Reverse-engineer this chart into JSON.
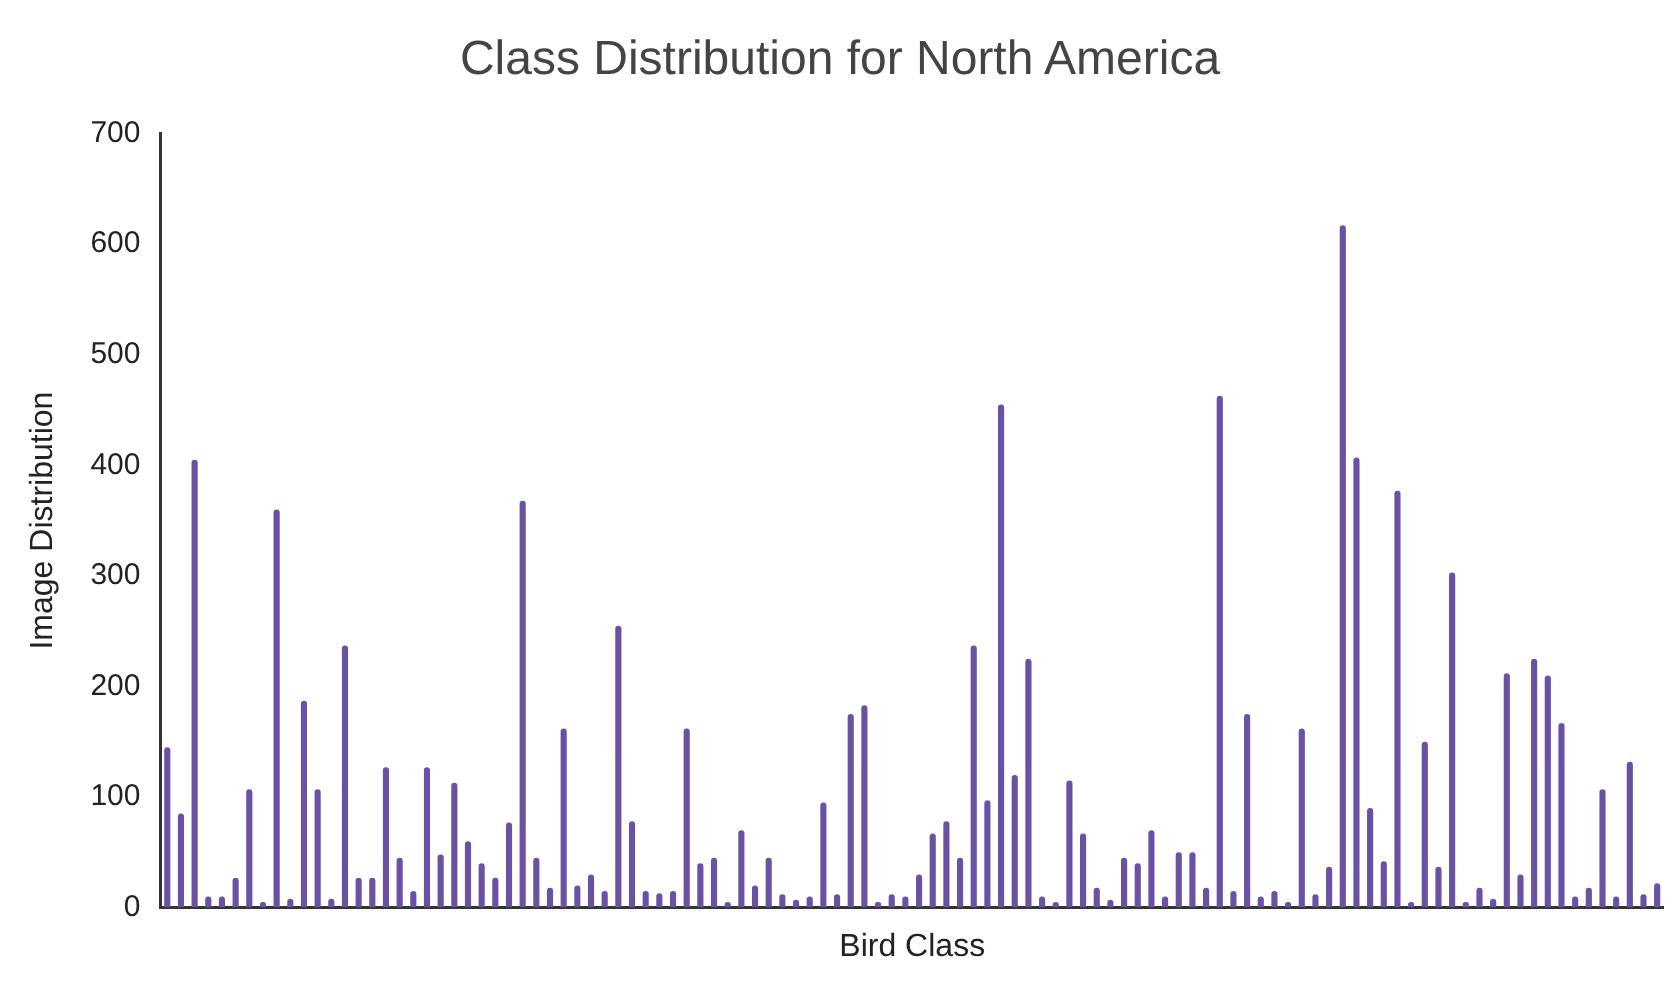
{
  "chart_data": {
    "type": "bar",
    "title": "Class Distribution for North America",
    "xlabel": "Bird Class",
    "ylabel": "Image Distribution",
    "categories": [
      null,
      null,
      null,
      null,
      null,
      null,
      null,
      null,
      null,
      null,
      null,
      null,
      null,
      null,
      null,
      null,
      null,
      null,
      null,
      null,
      null,
      null,
      null,
      null,
      null,
      null,
      null,
      null,
      null,
      null,
      null,
      null,
      null,
      null,
      null,
      null,
      null,
      null,
      null,
      null,
      null,
      null,
      null,
      null,
      null,
      null,
      null,
      null,
      null,
      null,
      null,
      null,
      null,
      null,
      null,
      null,
      null,
      null,
      null,
      null,
      null,
      null,
      null,
      null,
      null,
      null,
      null,
      null,
      null,
      null,
      null,
      null,
      null,
      null,
      null,
      null,
      null,
      null,
      null,
      null,
      null,
      null,
      null,
      null,
      null,
      null,
      null,
      null,
      null,
      null,
      null,
      null,
      null,
      null,
      null,
      null,
      null,
      null,
      null,
      null,
      null,
      null,
      null,
      null,
      null,
      null,
      null,
      null,
      null,
      null
    ],
    "values": [
      145,
      85,
      405,
      10,
      10,
      27,
      107,
      5,
      360,
      8,
      187,
      107,
      8,
      237,
      27,
      27,
      127,
      45,
      15,
      127,
      48,
      113,
      60,
      40,
      27,
      77,
      368,
      45,
      18,
      162,
      20,
      30,
      15,
      255,
      78,
      15,
      13,
      15,
      162,
      40,
      45,
      5,
      70,
      20,
      45,
      12,
      7,
      10,
      95,
      12,
      175,
      183,
      5,
      12,
      10,
      30,
      67,
      78,
      45,
      237,
      97,
      455,
      120,
      225,
      10,
      5,
      115,
      67,
      18,
      7,
      45,
      40,
      70,
      10,
      50,
      50,
      18,
      463,
      15,
      175,
      10,
      15,
      5,
      162,
      12,
      37,
      617,
      407,
      90,
      42,
      377,
      5,
      150,
      37,
      303,
      5,
      18,
      8,
      212,
      30,
      225,
      210,
      167,
      10,
      18,
      107,
      10,
      132,
      12,
      22
    ],
    "color": "#6a51a3",
    "ylim": [
      0,
      700
    ],
    "yticks": [
      0,
      100,
      200,
      300,
      400,
      500,
      600,
      700
    ],
    "grid": false,
    "legend": false
  }
}
